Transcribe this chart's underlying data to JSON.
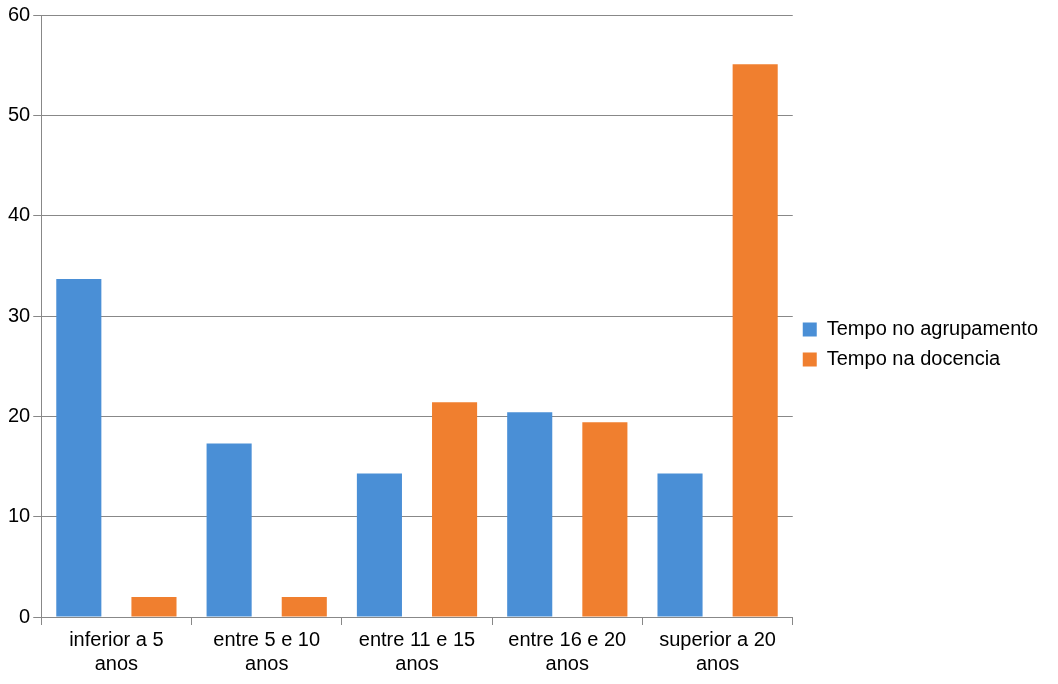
{
  "chart_data": {
    "type": "bar",
    "categories": [
      "inferior a 5 anos",
      "entre 5 e 10 anos",
      "entre 11 e 15 anos",
      "entre 16 e 20 anos",
      "superior a 20 anos"
    ],
    "series": [
      {
        "name": "Tempo no agrupamento",
        "color": "#4a8fd6",
        "values": [
          33.7,
          17.3,
          14.3,
          20.4,
          14.3
        ]
      },
      {
        "name": "Tempo na docencia",
        "color": "#f07f2f",
        "values": [
          2,
          2,
          21.4,
          19.4,
          55.1
        ]
      }
    ],
    "ylim": [
      0,
      60
    ],
    "yticks": [
      0,
      10,
      20,
      30,
      40,
      50,
      60
    ],
    "grid": "y",
    "legend": "right"
  }
}
